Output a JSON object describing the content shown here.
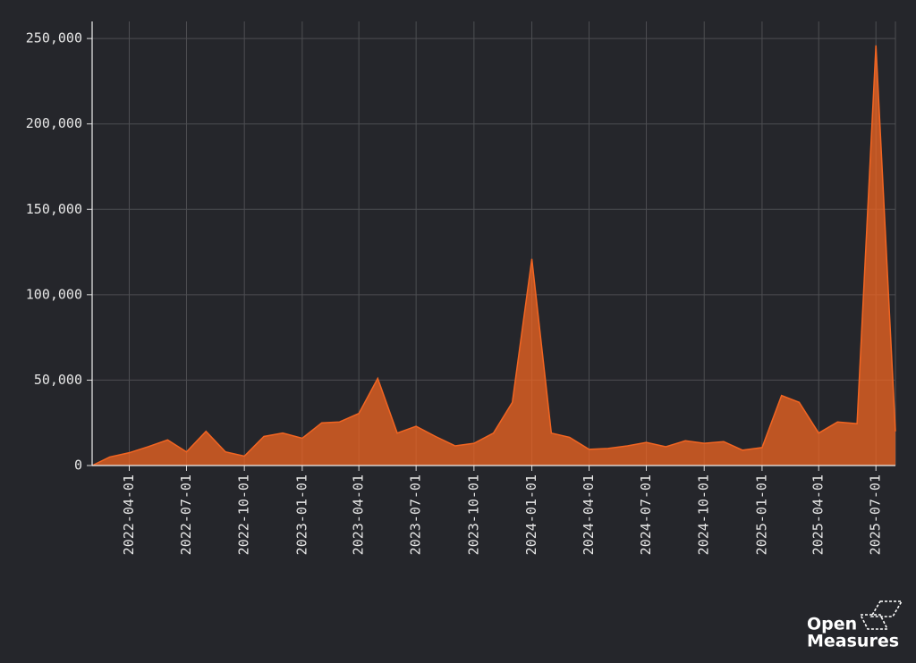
{
  "chart_data": {
    "type": "area",
    "x": [
      "2022-02-01",
      "2022-03-01",
      "2022-04-01",
      "2022-05-01",
      "2022-06-01",
      "2022-07-01",
      "2022-08-01",
      "2022-09-01",
      "2022-10-01",
      "2022-11-01",
      "2022-12-01",
      "2023-01-01",
      "2023-02-01",
      "2023-03-01",
      "2023-04-01",
      "2023-05-01",
      "2023-06-01",
      "2023-07-01",
      "2023-08-01",
      "2023-09-01",
      "2023-10-01",
      "2023-11-01",
      "2023-12-01",
      "2024-01-01",
      "2024-02-01",
      "2024-03-01",
      "2024-04-01",
      "2024-05-01",
      "2024-06-01",
      "2024-07-01",
      "2024-08-01",
      "2024-09-01",
      "2024-10-01",
      "2024-11-01",
      "2024-12-01",
      "2025-01-01",
      "2025-02-01",
      "2025-03-01",
      "2025-04-01",
      "2025-05-01",
      "2025-06-01",
      "2025-07-01",
      "2025-08-01"
    ],
    "values": [
      0,
      5000,
      7500,
      11000,
      15000,
      8000,
      20000,
      8000,
      5500,
      17000,
      19000,
      16000,
      25000,
      25500,
      30500,
      51000,
      19000,
      23000,
      17000,
      11500,
      13000,
      19000,
      37000,
      121000,
      19000,
      16500,
      9500,
      10000,
      11500,
      13500,
      11000,
      14500,
      13000,
      14000,
      9000,
      10500,
      41000,
      37000,
      19000,
      25500,
      24500,
      246000,
      20000
    ],
    "color": "#f26522",
    "xlim": [
      "2022-02-01",
      "2025-08-01"
    ],
    "xticks": [
      "2022-04-01",
      "2022-07-01",
      "2022-10-01",
      "2023-01-01",
      "2023-04-01",
      "2023-07-01",
      "2023-10-01",
      "2024-01-01",
      "2024-04-01",
      "2024-07-01",
      "2024-10-01",
      "2025-01-01",
      "2025-04-01",
      "2025-07-01"
    ],
    "ylim": [
      0,
      260000
    ],
    "yticks": [
      {
        "value": 0,
        "label": "0"
      },
      {
        "value": 50000,
        "label": "50,000"
      },
      {
        "value": 100000,
        "label": "100,000"
      },
      {
        "value": 150000,
        "label": "150,000"
      },
      {
        "value": 200000,
        "label": "200,000"
      },
      {
        "value": 250000,
        "label": "250,000"
      }
    ],
    "grid": true
  },
  "logo": [
    "Open",
    "Measures"
  ]
}
